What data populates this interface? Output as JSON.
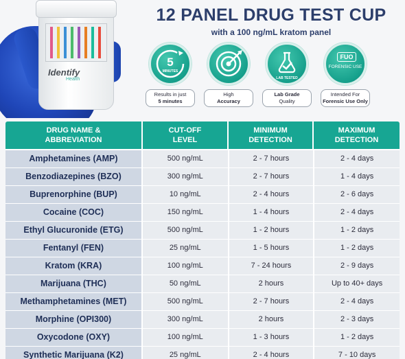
{
  "product": {
    "brand": "Identify",
    "brand_sub": "Health"
  },
  "header": {
    "title": "12 PANEL DRUG TEST CUP",
    "subtitle": "with a 100 ng/mL kratom panel"
  },
  "badges": [
    {
      "icon": "clock-5-minutes-icon",
      "icon_text": "5",
      "icon_subtext": "MINUTES",
      "line1": "Results in just",
      "line2": "5 minutes",
      "bold_line": 2
    },
    {
      "icon": "target-icon",
      "line1": "High",
      "line2": "Accuracy",
      "bold_line": 2
    },
    {
      "icon": "lab-flask-icon",
      "icon_text": "LAB TESTED",
      "line1": "Lab Grade",
      "line2": "Quality",
      "bold_line": 1
    },
    {
      "icon": "fuo-icon",
      "icon_text": "FUO",
      "icon_subtext": "FORENSIC USE",
      "line1": "Intended For",
      "line2": "Forensic Use Only",
      "bold_line": 2
    }
  ],
  "table": {
    "headers": [
      [
        "DRUG NAME &",
        "ABBREVIATION"
      ],
      [
        "CUT-OFF",
        "LEVEL"
      ],
      [
        "MINIMUM",
        "DETECTION"
      ],
      [
        "MAXIMUM",
        "DETECTION"
      ]
    ],
    "rows": [
      [
        "Amphetamines (AMP)",
        "500 ng/mL",
        "2 - 7 hours",
        "2 - 4 days"
      ],
      [
        "Benzodiazepines (BZO)",
        "300 ng/mL",
        "2 - 7 hours",
        "1 - 4 days"
      ],
      [
        "Buprenorphine (BUP)",
        "10 ng/mL",
        "2 - 4 hours",
        "2 - 6 days"
      ],
      [
        "Cocaine (COC)",
        "150 ng/mL",
        "1 - 4 hours",
        "2 - 4 days"
      ],
      [
        "Ethyl Glucuronide (ETG)",
        "500 ng/mL",
        "1 - 2 hours",
        "1 - 2 days"
      ],
      [
        "Fentanyl (FEN)",
        "25 ng/mL",
        "1 - 5 hours",
        "1 - 2 days"
      ],
      [
        "Kratom (KRA)",
        "100 ng/mL",
        "7 - 24 hours",
        "2 - 9 days"
      ],
      [
        "Marijuana (THC)",
        "50 ng/mL",
        "2 hours",
        "Up to 40+ days"
      ],
      [
        "Methamphetamines (MET)",
        "500 ng/mL",
        "2 - 7 hours",
        "2 - 4 days"
      ],
      [
        "Morphine (OPI300)",
        "300 ng/mL",
        "2 hours",
        "2 - 3 days"
      ],
      [
        "Oxycodone (OXY)",
        "100 ng/mL",
        "1 - 3 hours",
        "1 - 2 days"
      ],
      [
        "Synthetic Marijuana (K2)",
        "25 ng/mL",
        "2 - 4 hours",
        "7 - 10 days"
      ]
    ]
  },
  "colors": {
    "title": "#2c3e6b",
    "teal": "#17a693",
    "name_cell": "#cfd7e3",
    "value_cell": "#e9ecf0",
    "glove": "#1f46b8"
  }
}
